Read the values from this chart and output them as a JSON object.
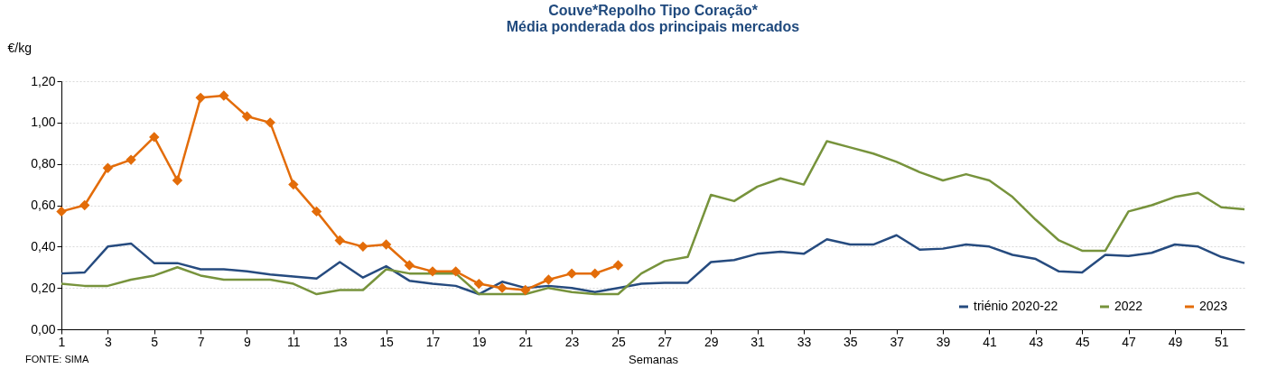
{
  "chart_data": {
    "type": "line",
    "title": "Couve*Repolho Tipo Coração*",
    "subtitle": "Média ponderada dos principais mercados",
    "xlabel": "Semanas",
    "ylabel": "€/kg",
    "annotations": [
      "FONTE: SIMA"
    ],
    "x": [
      1,
      2,
      3,
      4,
      5,
      6,
      7,
      8,
      9,
      10,
      11,
      12,
      13,
      14,
      15,
      16,
      17,
      18,
      19,
      20,
      21,
      22,
      23,
      24,
      25,
      26,
      27,
      28,
      29,
      30,
      31,
      32,
      33,
      34,
      35,
      36,
      37,
      38,
      39,
      40,
      41,
      42,
      43,
      44,
      45,
      46,
      47,
      48,
      49,
      50,
      51,
      52
    ],
    "series": [
      {
        "name": "triénio 2020-22",
        "color": "#264b7f",
        "marker": "none",
        "values": [
          0.27,
          0.275,
          0.4,
          0.415,
          0.32,
          0.32,
          0.29,
          0.29,
          0.28,
          0.265,
          0.255,
          0.245,
          0.325,
          0.25,
          0.305,
          0.235,
          0.22,
          0.21,
          0.17,
          0.23,
          0.2,
          0.21,
          0.2,
          0.18,
          0.2,
          0.22,
          0.225,
          0.225,
          0.325,
          0.335,
          0.365,
          0.375,
          0.365,
          0.435,
          0.41,
          0.41,
          0.455,
          0.385,
          0.39,
          0.41,
          0.4,
          0.36,
          0.34,
          0.28,
          0.275,
          0.36,
          0.355,
          0.37,
          0.41,
          0.4,
          0.35,
          0.32
        ]
      },
      {
        "name": "2022",
        "color": "#77933c",
        "marker": "none",
        "values": [
          0.22,
          0.21,
          0.21,
          0.24,
          0.26,
          0.3,
          0.26,
          0.24,
          0.24,
          0.24,
          0.22,
          0.17,
          0.19,
          0.19,
          0.29,
          0.27,
          0.27,
          0.27,
          0.17,
          0.17,
          0.17,
          0.2,
          0.18,
          0.17,
          0.17,
          0.27,
          0.33,
          0.35,
          0.65,
          0.62,
          0.69,
          0.73,
          0.7,
          0.91,
          0.88,
          0.85,
          0.81,
          0.76,
          0.72,
          0.75,
          0.72,
          0.64,
          0.53,
          0.43,
          0.38,
          0.38,
          0.57,
          0.6,
          0.64,
          0.66,
          0.59,
          0.58
        ]
      },
      {
        "name": "2023",
        "color": "#e36c09",
        "marker": "diamond",
        "values": [
          0.57,
          0.6,
          0.78,
          0.82,
          0.93,
          0.72,
          1.12,
          1.13,
          1.03,
          1.0,
          0.7,
          0.57,
          0.43,
          0.4,
          0.41,
          0.31,
          0.28,
          0.28,
          0.22,
          0.2,
          0.19,
          0.24,
          0.27,
          0.27,
          0.31,
          null,
          null,
          null,
          null,
          null,
          null,
          null,
          null,
          null,
          null,
          null,
          null,
          null,
          null,
          null,
          null,
          null,
          null,
          null,
          null,
          null,
          null,
          null,
          null,
          null,
          null,
          null
        ]
      }
    ],
    "xlim": [
      1,
      52
    ],
    "xticks": [
      1,
      3,
      5,
      7,
      9,
      11,
      13,
      15,
      17,
      19,
      21,
      23,
      25,
      27,
      29,
      31,
      33,
      35,
      37,
      39,
      41,
      43,
      45,
      47,
      49,
      51
    ],
    "ylim": [
      0,
      1.2
    ],
    "yticks": [
      {
        "value": 0,
        "label": "0,00"
      },
      {
        "value": 0.2,
        "label": "0,20"
      },
      {
        "value": 0.4,
        "label": "0,40"
      },
      {
        "value": 0.6,
        "label": "0,60"
      },
      {
        "value": 0.8,
        "label": "0,80"
      },
      {
        "value": 1.0,
        "label": "1,00"
      },
      {
        "value": 1.2,
        "label": "1,20"
      }
    ],
    "grid": "y",
    "legend": "bottom right",
    "line_style": "solid"
  }
}
